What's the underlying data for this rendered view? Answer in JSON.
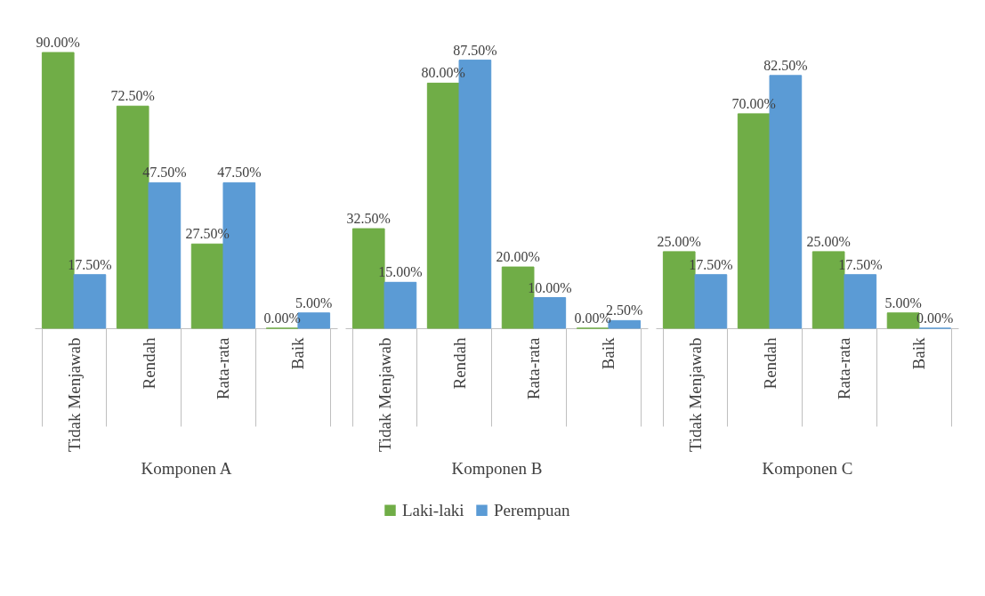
{
  "chart_data": {
    "type": "bar",
    "categories": [
      "Tidak Menjawab",
      "Rendah",
      "Rata-rata",
      "Baik",
      "Tidak Menjawab",
      "Rendah",
      "Rata-rata",
      "Baik",
      "Tidak Menjawab",
      "Rendah",
      "Rata-rata",
      "Baik"
    ],
    "annotations": [
      "Komponen A",
      "Komponen B",
      "Komponen C"
    ],
    "series": [
      {
        "name": "Laki-laki",
        "color": "#70ad47",
        "values": [
          90,
          72.5,
          27.5,
          0,
          32.5,
          80,
          20,
          0,
          25,
          70,
          25,
          5
        ],
        "value_labels": [
          "90.00%",
          "72.50%",
          "27.50%",
          "0.00%",
          "32.50%",
          "80.00%",
          "20.00%",
          "0.00%",
          "25.00%",
          "70.00%",
          "25.00%",
          "5.00%"
        ]
      },
      {
        "name": "Perempuan",
        "color": "#5b9bd5",
        "values": [
          17.5,
          47.5,
          47.5,
          5,
          15,
          87.5,
          10,
          2.5,
          17.5,
          82.5,
          17.5,
          0
        ],
        "value_labels": [
          "17.50%",
          "47.50%",
          "47.50%",
          "5.00%",
          "15.00%",
          "87.50%",
          "10.00%",
          "2.50%",
          "17.50%",
          "82.50%",
          "17.50%",
          "0.00%"
        ]
      }
    ],
    "legend": "bottom"
  }
}
